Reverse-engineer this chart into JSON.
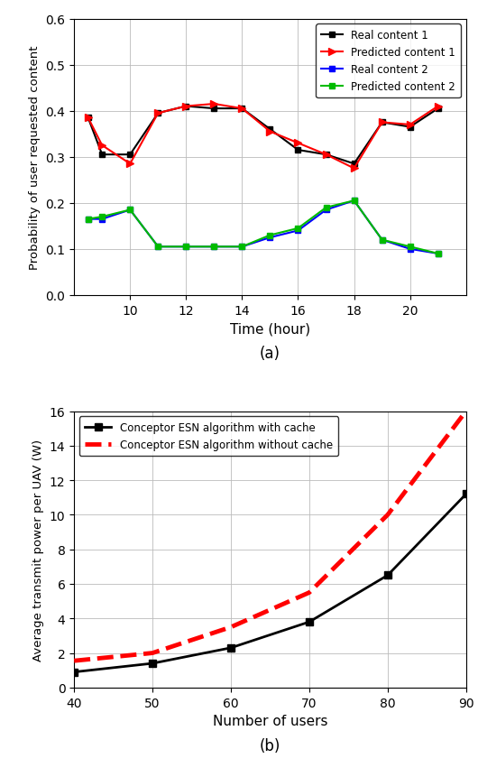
{
  "plot_a": {
    "title": "(a)",
    "xlabel": "Time (hour)",
    "ylabel": "Probability of user requested content",
    "xlim": [
      8.0,
      22.0
    ],
    "ylim": [
      0,
      0.6
    ],
    "xticks": [
      10,
      12,
      14,
      16,
      18,
      20
    ],
    "yticks": [
      0,
      0.1,
      0.2,
      0.3,
      0.4,
      0.5,
      0.6
    ],
    "time": [
      8.5,
      9,
      10,
      11,
      12,
      13,
      14,
      15,
      16,
      17,
      18,
      19,
      20,
      21
    ],
    "real_content1": [
      0.385,
      0.305,
      0.305,
      0.395,
      0.41,
      0.405,
      0.405,
      0.36,
      0.315,
      0.305,
      0.285,
      0.375,
      0.365,
      0.405
    ],
    "predicted_content1": [
      0.385,
      0.325,
      0.285,
      0.395,
      0.41,
      0.415,
      0.405,
      0.355,
      0.33,
      0.305,
      0.275,
      0.375,
      0.37,
      0.41
    ],
    "real_content2": [
      0.165,
      0.165,
      0.185,
      0.105,
      0.105,
      0.105,
      0.105,
      0.125,
      0.14,
      0.185,
      0.205,
      0.12,
      0.1,
      0.09
    ],
    "predicted_content2": [
      0.165,
      0.17,
      0.185,
      0.105,
      0.105,
      0.105,
      0.105,
      0.13,
      0.145,
      0.19,
      0.205,
      0.12,
      0.105,
      0.09
    ],
    "legend": [
      "Real content 1",
      "Predicted content 1",
      "Real content 2",
      "Predicted content 2"
    ],
    "colors": [
      "#000000",
      "#ff0000",
      "#0000ff",
      "#00bb00"
    ],
    "markers": [
      "s",
      ">",
      "s",
      "s"
    ],
    "markersizes": [
      5,
      6,
      5,
      5
    ]
  },
  "plot_b": {
    "title": "(b)",
    "xlabel": "Number of users",
    "ylabel": "Average transmit power per UAV (W)",
    "xlim": [
      40,
      90
    ],
    "ylim": [
      0,
      16
    ],
    "xticks": [
      40,
      50,
      60,
      70,
      80,
      90
    ],
    "yticks": [
      0,
      2,
      4,
      6,
      8,
      10,
      12,
      14,
      16
    ],
    "users": [
      40,
      50,
      60,
      70,
      80,
      90
    ],
    "with_cache": [
      0.9,
      1.4,
      2.3,
      3.8,
      6.5,
      11.2
    ],
    "without_cache": [
      1.55,
      2.0,
      3.5,
      5.5,
      10.0,
      16.0
    ],
    "legend": [
      "Conceptor ESN algorithm with cache",
      "Conceptor ESN algorithm without cache"
    ],
    "colors": [
      "#000000",
      "#ff0000"
    ]
  }
}
